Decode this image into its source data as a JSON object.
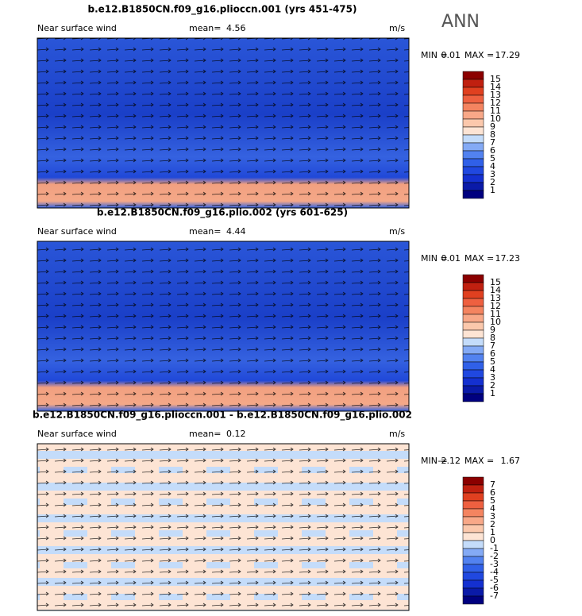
{
  "header": {
    "season": "ANN"
  },
  "colormap": [
    "#8b0000",
    "#c02010",
    "#e04020",
    "#ee6040",
    "#f48460",
    "#f8a888",
    "#fbc8ac",
    "#fde4d4",
    "#c4dcfa",
    "#84aaf5",
    "#5282f0",
    "#3060e8",
    "#2048e0",
    "#1430d0",
    "#0a1aa8",
    "#00007f"
  ],
  "panels": [
    {
      "title": "b.e12.B1850CN.f09_g16.plioccn.001 (yrs 451-475)",
      "variable": "Near surface wind",
      "mean_label": "mean=",
      "mean": "4.56",
      "units": "m/s",
      "min_label": "MIN =",
      "min": "0.01",
      "max_label": "MAX =",
      "max": "17.29",
      "colorbar_labels": [
        "15",
        "14",
        "13",
        "12",
        "11",
        "10",
        "9",
        "8",
        "7",
        "6",
        "5",
        "4",
        "3",
        "2",
        "1"
      ]
    },
    {
      "title": "b.e12.B1850CN.f09_g16.plio.002 (yrs 601-625)",
      "variable": "Near surface wind",
      "mean_label": "mean=",
      "mean": "4.44",
      "units": "m/s",
      "min_label": "MIN =",
      "min": "0.01",
      "max_label": "MAX =",
      "max": "17.23",
      "colorbar_labels": [
        "15",
        "14",
        "13",
        "12",
        "11",
        "10",
        "9",
        "8",
        "7",
        "6",
        "5",
        "4",
        "3",
        "2",
        "1"
      ]
    },
    {
      "title": "b.e12.B1850CN.f09_g16.plioccn.001 - b.e12.B1850CN.f09_g16.plio.002",
      "variable": "Near surface wind",
      "mean_label": "mean=",
      "mean": "0.12",
      "units": "m/s",
      "min_label": "MIN =",
      "min": "-2.12",
      "max_label": "MAX =",
      "max": "1.67",
      "colorbar_labels": [
        "7",
        "6",
        "5",
        "4",
        "3",
        "2",
        "1",
        "0",
        "-1",
        "-2",
        "-3",
        "-4",
        "-5",
        "-6",
        "-7"
      ]
    }
  ]
}
